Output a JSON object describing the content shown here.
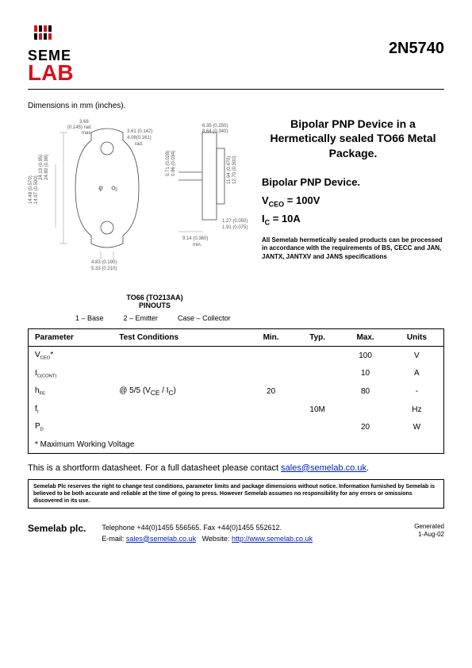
{
  "header": {
    "logo_top": "SEME",
    "logo_bottom": "LAB",
    "part_number": "2N5740"
  },
  "dim_label": "Dimensions in mm (inches).",
  "diagram": {
    "dims": {
      "d1": "3.68\n(0.145) rad.\nmax.",
      "d2": "3.61 (0.142)\n4.08(0.161)\nrad.",
      "d3": "24.13 (0.95)\n24.89 (0.98)",
      "d4": "14.48 (0.570)\n14.97 (0.590)",
      "d5": "4.83 (0.190)\n5.33 (0.210)",
      "d6": "6.35 (0.250)\n8.64 (0.340)",
      "d7": "0.71 (0.028)\n0.86 (0.034)",
      "d8": "11.94 (0.470)\n12.70 (0.500)",
      "d9": "1.27 (0.050)\n1.91 (0.075)",
      "d10": "9.14 (0.360)\nmin."
    },
    "pinout_title": "TO66 (TO213AA)\nPINOUTS",
    "pin1": "1 – Base",
    "pin2": "2 – Emitter",
    "pin3": "Case – Collector"
  },
  "info": {
    "title_main": "Bipolar PNP Device in a Hermetically sealed TO66 Metal Package.",
    "title_sub": "Bipolar PNP Device.",
    "vceo_label": "V",
    "vceo_sub": "CEO",
    "vceo_val": " =  100V",
    "ic_label": "I",
    "ic_sub": "C",
    "ic_val": " = 10A",
    "note": "All Semelab hermetically sealed products can be processed in accordance with the requirements of BS, CECC and JAN, JANTX, JANTXV and JANS specifications"
  },
  "table": {
    "headers": [
      "Parameter",
      "Test Conditions",
      "Min.",
      "Typ.",
      "Max.",
      "Units"
    ],
    "rows": [
      {
        "param": "V",
        "psub": "CEO",
        "pstar": "*",
        "cond": "",
        "min": "",
        "typ": "",
        "max": "100",
        "units": "V"
      },
      {
        "param": "I",
        "psub": "C(CONT)",
        "pstar": "",
        "cond": "",
        "min": "",
        "typ": "",
        "max": "10",
        "units": "A"
      },
      {
        "param": "h",
        "psub": "FE",
        "pstar": "",
        "cond": "@ 5/5 (V<sub>CE</sub> / I<sub>C</sub>)",
        "min": "20",
        "typ": "",
        "max": "80",
        "units": "-"
      },
      {
        "param": "f",
        "psub": "t",
        "pstar": "",
        "cond": "",
        "min": "",
        "typ": "10M",
        "max": "",
        "units": "Hz"
      },
      {
        "param": "P",
        "psub": "D",
        "pstar": "",
        "cond": "",
        "min": "",
        "typ": "",
        "max": "20",
        "units": "W"
      }
    ],
    "footnote": "* Maximum Working Voltage"
  },
  "contact_line_pre": "This is a shortform datasheet. For a full datasheet please contact ",
  "contact_email": "sales@semelab.co.uk",
  "disclaimer": "Semelab Plc reserves the right to change test conditions, parameter limits and package dimensions without notice. Information furnished by Semelab is believed to be both accurate and reliable at the time of going to press. However Semelab assumes no responsibility for any errors or omissions discovered in its use.",
  "footer": {
    "company": "Semelab plc.",
    "phone": "Telephone +44(0)1455 556565. Fax +44(0)1455 552612.",
    "email_label": "E-mail: ",
    "email": "sales@semelab.co.uk",
    "web_label": "   Website: ",
    "web": "http://www.semelab.co.uk",
    "gen_label": "Generated",
    "gen_date": "1-Aug-02"
  },
  "colors": {
    "brand_red": "#d8101e",
    "link_blue": "#0020c0",
    "text": "#000000",
    "background": "#ffffff"
  }
}
